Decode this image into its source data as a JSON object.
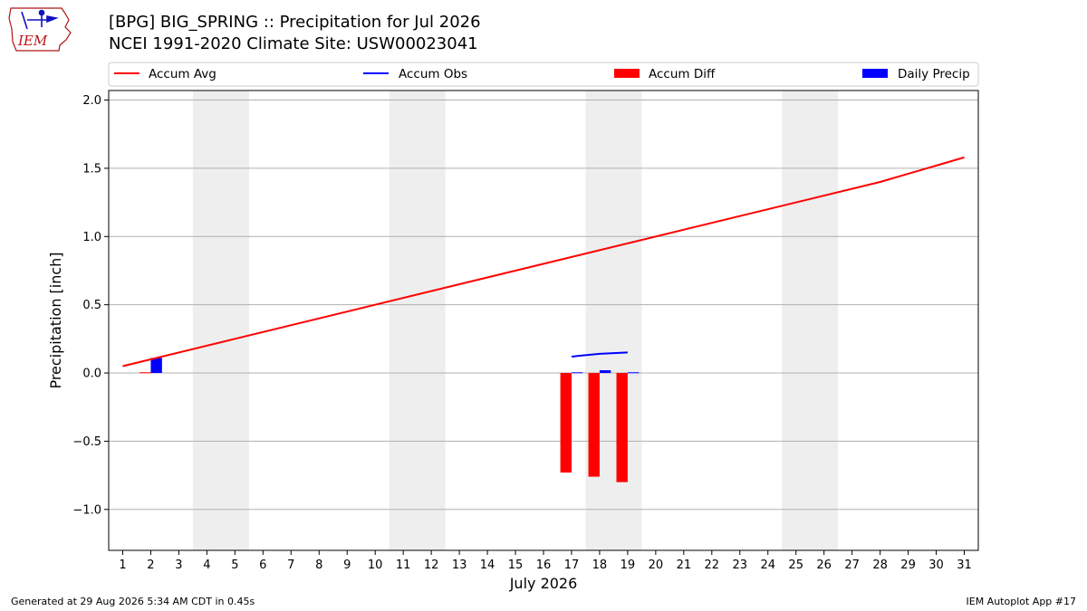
{
  "header": {
    "logo_text": "IEM",
    "title_line1": "[BPG] BIG_SPRING :: Precipitation for Jul 2026",
    "title_line2": "NCEI 1991-2020 Climate Site: USW00023041"
  },
  "footer": {
    "left": "Generated at 29 Aug 2026 5:34 AM CDT in 0.45s",
    "right": "IEM Autoplot App #17"
  },
  "colors": {
    "avg": "#ff0000",
    "obs": "#0000ff",
    "diff": "#ff0000",
    "daily": "#0000ff",
    "weekend_shade": "#eeeeee",
    "grid": "#b0b0b0"
  },
  "chart_data": {
    "type": "bar",
    "xlabel": "July 2026",
    "ylabel": "Precipitation [inch]",
    "xlim": [
      0.5,
      31.5
    ],
    "ylim": [
      -1.3,
      2.07
    ],
    "yticks": [
      -1.0,
      -0.5,
      0.0,
      0.5,
      1.0,
      1.5,
      2.0
    ],
    "ytick_labels": [
      "−1.0",
      "−0.5",
      "0.0",
      "0.5",
      "1.0",
      "1.5",
      "2.0"
    ],
    "xticks": [
      1,
      2,
      3,
      4,
      5,
      6,
      7,
      8,
      9,
      10,
      11,
      12,
      13,
      14,
      15,
      16,
      17,
      18,
      19,
      20,
      21,
      22,
      23,
      24,
      25,
      26,
      27,
      28,
      29,
      30,
      31
    ],
    "grid": "horizontal",
    "legend_position": "top",
    "weekend_shading": [
      [
        3.5,
        5.5
      ],
      [
        10.5,
        12.5
      ],
      [
        17.5,
        19.5
      ],
      [
        24.5,
        26.5
      ]
    ],
    "legend": [
      {
        "name": "Accum Avg",
        "kind": "line",
        "color": "#ff0000"
      },
      {
        "name": "Accum Obs",
        "kind": "line",
        "color": "#0000ff"
      },
      {
        "name": "Accum Diff",
        "kind": "bar",
        "color": "#ff0000"
      },
      {
        "name": "Daily Precip",
        "kind": "bar",
        "color": "#0000ff"
      }
    ],
    "series": [
      {
        "name": "Accum Avg",
        "kind": "line",
        "x": [
          1,
          28,
          31
        ],
        "values": [
          0.05,
          1.4,
          1.58
        ]
      },
      {
        "name": "Accum Obs",
        "kind": "line",
        "x": [
          17,
          18,
          19
        ],
        "values": [
          0.12,
          0.14,
          0.15
        ]
      },
      {
        "name": "Accum Diff",
        "kind": "bar",
        "x": [
          2,
          17,
          18,
          19
        ],
        "values": [
          0.005,
          -0.73,
          -0.76,
          -0.8
        ]
      },
      {
        "name": "Daily Precip",
        "kind": "bar",
        "x": [
          2,
          17,
          18,
          19
        ],
        "values": [
          0.11,
          0.005,
          0.02,
          0.005
        ]
      }
    ]
  }
}
